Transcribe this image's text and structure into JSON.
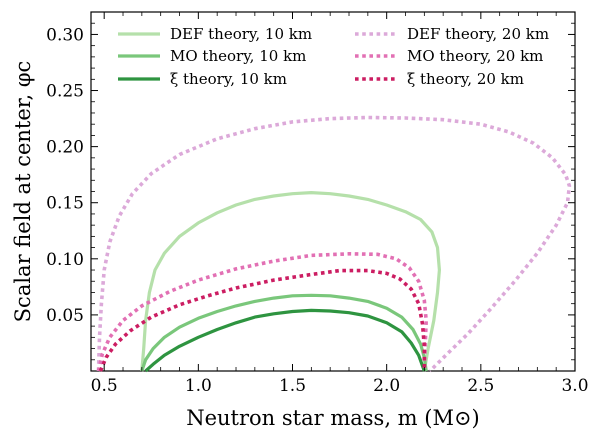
{
  "chart_data": {
    "type": "line",
    "xlabel": "Neutron star mass, m (M⊙)",
    "ylabel": "Scalar field at center, φc",
    "xlim": [
      0.43,
      3.0
    ],
    "ylim": [
      0.0,
      0.32
    ],
    "x_ticks": [
      "0.5",
      "1.0",
      "1.5",
      "2.0",
      "2.5",
      "3.0"
    ],
    "x_tick_values": [
      0.5,
      1.0,
      1.5,
      2.0,
      2.5,
      3.0
    ],
    "y_ticks": [
      "0.05",
      "0.10",
      "0.15",
      "0.20",
      "0.25",
      "0.30"
    ],
    "y_tick_values": [
      0.05,
      0.1,
      0.15,
      0.2,
      0.25,
      0.3
    ],
    "grid": false,
    "legend_position": "top",
    "series": [
      {
        "name": "DEF theory, 10 km",
        "color": "#b5e0aa",
        "style": "solid",
        "points": [
          [
            0.7,
            0.0
          ],
          [
            0.71,
            0.02
          ],
          [
            0.72,
            0.045
          ],
          [
            0.74,
            0.07
          ],
          [
            0.77,
            0.09
          ],
          [
            0.82,
            0.105
          ],
          [
            0.9,
            0.12
          ],
          [
            1.0,
            0.132
          ],
          [
            1.1,
            0.141
          ],
          [
            1.2,
            0.148
          ],
          [
            1.3,
            0.153
          ],
          [
            1.4,
            0.156
          ],
          [
            1.5,
            0.158
          ],
          [
            1.6,
            0.159
          ],
          [
            1.7,
            0.158
          ],
          [
            1.8,
            0.156
          ],
          [
            1.9,
            0.153
          ],
          [
            2.0,
            0.148
          ],
          [
            2.1,
            0.142
          ],
          [
            2.18,
            0.135
          ],
          [
            2.24,
            0.124
          ],
          [
            2.27,
            0.11
          ],
          [
            2.28,
            0.09
          ],
          [
            2.27,
            0.07
          ],
          [
            2.25,
            0.045
          ],
          [
            2.22,
            0.02
          ],
          [
            2.2,
            0.0
          ]
        ]
      },
      {
        "name": "MO theory, 10 km",
        "color": "#7ac77b",
        "style": "solid",
        "points": [
          [
            0.7,
            0.0
          ],
          [
            0.72,
            0.01
          ],
          [
            0.76,
            0.02
          ],
          [
            0.82,
            0.03
          ],
          [
            0.9,
            0.039
          ],
          [
            1.0,
            0.047
          ],
          [
            1.1,
            0.053
          ],
          [
            1.2,
            0.058
          ],
          [
            1.3,
            0.062
          ],
          [
            1.4,
            0.065
          ],
          [
            1.5,
            0.067
          ],
          [
            1.6,
            0.0675
          ],
          [
            1.7,
            0.067
          ],
          [
            1.8,
            0.065
          ],
          [
            1.9,
            0.062
          ],
          [
            2.0,
            0.056
          ],
          [
            2.08,
            0.048
          ],
          [
            2.14,
            0.037
          ],
          [
            2.18,
            0.024
          ],
          [
            2.2,
            0.012
          ],
          [
            2.21,
            0.0
          ]
        ]
      },
      {
        "name": "ξ theory, 10 km",
        "color": "#2e9440",
        "style": "solid",
        "points": [
          [
            0.72,
            0.0
          ],
          [
            0.76,
            0.006
          ],
          [
            0.82,
            0.014
          ],
          [
            0.9,
            0.022
          ],
          [
            1.0,
            0.03
          ],
          [
            1.1,
            0.037
          ],
          [
            1.2,
            0.043
          ],
          [
            1.3,
            0.048
          ],
          [
            1.4,
            0.051
          ],
          [
            1.5,
            0.053
          ],
          [
            1.6,
            0.054
          ],
          [
            1.7,
            0.0535
          ],
          [
            1.8,
            0.052
          ],
          [
            1.9,
            0.049
          ],
          [
            2.0,
            0.043
          ],
          [
            2.08,
            0.035
          ],
          [
            2.13,
            0.025
          ],
          [
            2.17,
            0.014
          ],
          [
            2.2,
            0.0
          ]
        ]
      },
      {
        "name": "DEF theory, 20 km",
        "color": "#dca9d9",
        "style": "dotted",
        "points": [
          [
            0.47,
            0.0
          ],
          [
            0.475,
            0.03
          ],
          [
            0.485,
            0.06
          ],
          [
            0.5,
            0.09
          ],
          [
            0.53,
            0.115
          ],
          [
            0.58,
            0.138
          ],
          [
            0.65,
            0.158
          ],
          [
            0.75,
            0.176
          ],
          [
            0.9,
            0.193
          ],
          [
            1.1,
            0.207
          ],
          [
            1.3,
            0.216
          ],
          [
            1.5,
            0.222
          ],
          [
            1.7,
            0.225
          ],
          [
            1.9,
            0.226
          ],
          [
            2.1,
            0.2255
          ],
          [
            2.3,
            0.224
          ],
          [
            2.5,
            0.22
          ],
          [
            2.65,
            0.213
          ],
          [
            2.78,
            0.203
          ],
          [
            2.88,
            0.19
          ],
          [
            2.95,
            0.175
          ],
          [
            2.97,
            0.165
          ],
          [
            2.96,
            0.15
          ],
          [
            2.9,
            0.13
          ],
          [
            2.8,
            0.105
          ],
          [
            2.68,
            0.08
          ],
          [
            2.55,
            0.055
          ],
          [
            2.43,
            0.033
          ],
          [
            2.32,
            0.015
          ],
          [
            2.23,
            0.0
          ]
        ]
      },
      {
        "name": "MO theory, 20 km",
        "color": "#e270b4",
        "style": "dotted",
        "points": [
          [
            0.47,
            0.0
          ],
          [
            0.49,
            0.015
          ],
          [
            0.53,
            0.03
          ],
          [
            0.6,
            0.045
          ],
          [
            0.7,
            0.058
          ],
          [
            0.85,
            0.071
          ],
          [
            1.0,
            0.081
          ],
          [
            1.2,
            0.091
          ],
          [
            1.4,
            0.098
          ],
          [
            1.6,
            0.103
          ],
          [
            1.8,
            0.1045
          ],
          [
            1.95,
            0.104
          ],
          [
            2.05,
            0.1
          ],
          [
            2.12,
            0.092
          ],
          [
            2.17,
            0.08
          ],
          [
            2.2,
            0.063
          ],
          [
            2.21,
            0.045
          ],
          [
            2.205,
            0.025
          ],
          [
            2.2,
            0.0
          ]
        ]
      },
      {
        "name": "ξ theory, 20 km",
        "color": "#cc1d62",
        "style": "dotted",
        "points": [
          [
            0.48,
            0.0
          ],
          [
            0.51,
            0.012
          ],
          [
            0.56,
            0.024
          ],
          [
            0.64,
            0.036
          ],
          [
            0.75,
            0.048
          ],
          [
            0.9,
            0.059
          ],
          [
            1.05,
            0.067
          ],
          [
            1.2,
            0.074
          ],
          [
            1.4,
            0.081
          ],
          [
            1.6,
            0.086
          ],
          [
            1.75,
            0.0895
          ],
          [
            1.9,
            0.0895
          ],
          [
            2.0,
            0.087
          ],
          [
            2.07,
            0.082
          ],
          [
            2.13,
            0.073
          ],
          [
            2.17,
            0.06
          ],
          [
            2.19,
            0.042
          ],
          [
            2.2,
            0.022
          ],
          [
            2.2,
            0.0
          ]
        ]
      }
    ]
  }
}
